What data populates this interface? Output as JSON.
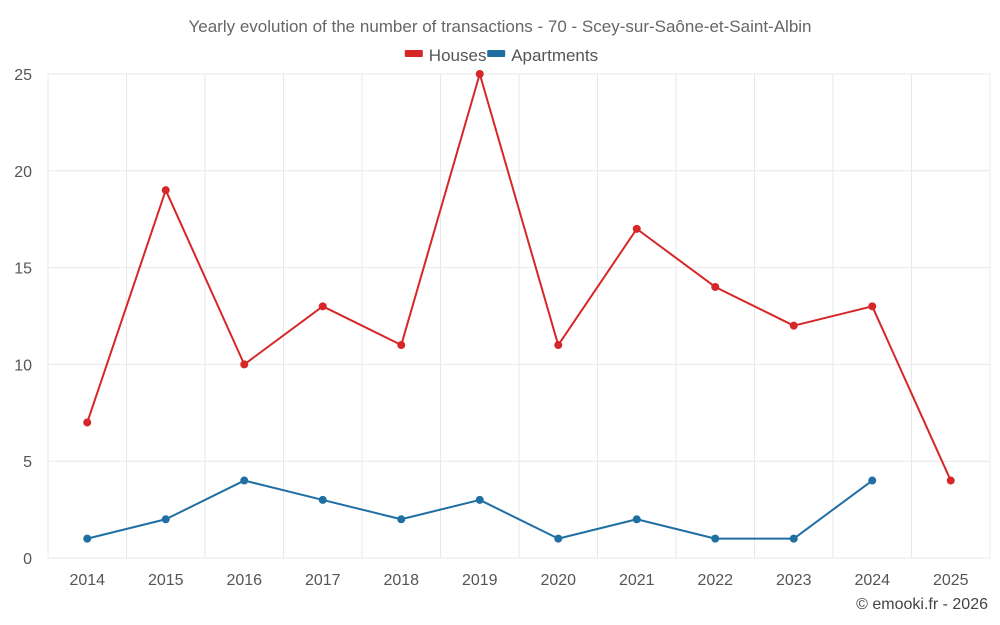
{
  "chart_data": {
    "type": "line",
    "title": "Yearly evolution of the number of transactions - 70 - Scey-sur-Saône-et-Saint-Albin",
    "categories": [
      "2014",
      "2015",
      "2016",
      "2017",
      "2018",
      "2019",
      "2020",
      "2021",
      "2022",
      "2023",
      "2024",
      "2025"
    ],
    "series": [
      {
        "name": "Houses",
        "color": "#d62728",
        "values": [
          7,
          19,
          10,
          13,
          11,
          25,
          11,
          17,
          14,
          12,
          13,
          4
        ]
      },
      {
        "name": "Apartments",
        "color": "#1f6fa3",
        "values": [
          1,
          2,
          4,
          3,
          2,
          3,
          1,
          2,
          1,
          1,
          4,
          null
        ]
      }
    ],
    "ylim": [
      0,
      25
    ],
    "yticks": [
      0,
      5,
      10,
      15,
      20,
      25
    ],
    "grid": true,
    "legend": "top-center",
    "xlabel": "",
    "ylabel": ""
  },
  "credit": "© emooki.fr - 2026"
}
